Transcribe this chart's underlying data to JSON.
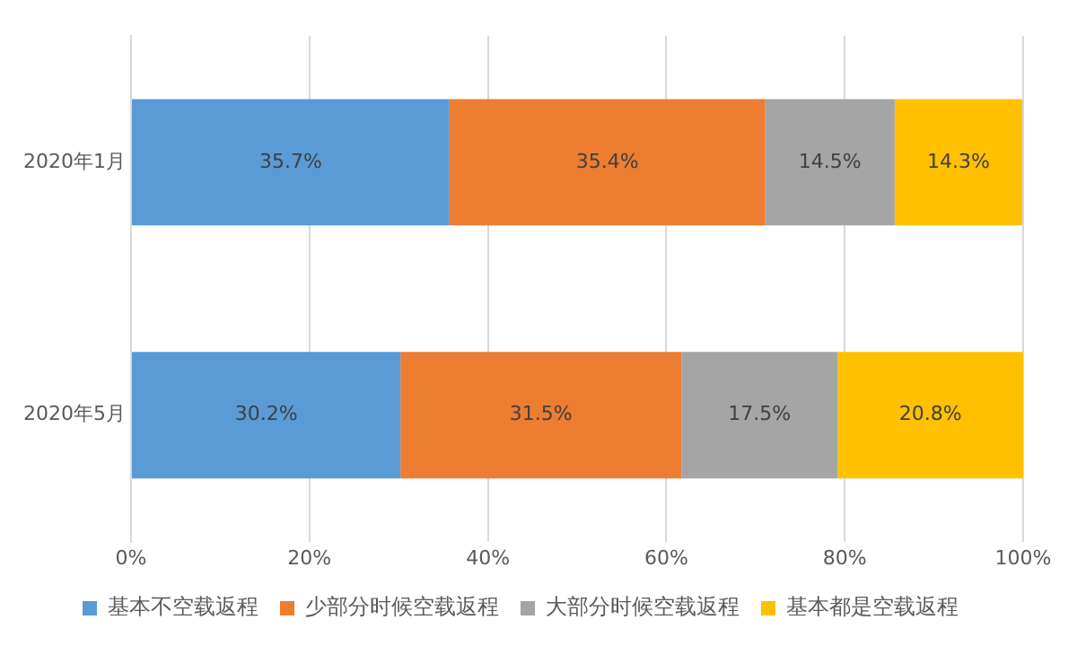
{
  "chart_data": {
    "type": "bar",
    "orientation": "horizontal",
    "stacked": true,
    "categories": [
      "2020年1月",
      "2020年5月"
    ],
    "series": [
      {
        "name": "基本不空载返程",
        "color": "#5b9bd5",
        "values": [
          35.7,
          30.2
        ],
        "value_labels": [
          "35.7%",
          "30.2%"
        ]
      },
      {
        "name": "少部分时候空载返程",
        "color": "#ed7d31",
        "values": [
          35.4,
          31.5
        ],
        "value_labels": [
          "35.4%",
          "31.5%"
        ]
      },
      {
        "name": "大部分时候空载返程",
        "color": "#a5a5a5",
        "values": [
          14.5,
          17.5
        ],
        "value_labels": [
          "14.5%",
          "17.5%"
        ]
      },
      {
        "name": "基本都是空载返程",
        "color": "#ffc000",
        "values": [
          14.3,
          20.8
        ],
        "value_labels": [
          "14.3%",
          "20.8%"
        ]
      }
    ],
    "xlim": [
      0,
      100
    ],
    "xticks": [
      {
        "value": 0,
        "label": "0%"
      },
      {
        "value": 20,
        "label": "20%"
      },
      {
        "value": 40,
        "label": "40%"
      },
      {
        "value": 60,
        "label": "60%"
      },
      {
        "value": 80,
        "label": "80%"
      },
      {
        "value": 100,
        "label": "100%"
      }
    ],
    "grid": "x",
    "legend": "bottom"
  }
}
